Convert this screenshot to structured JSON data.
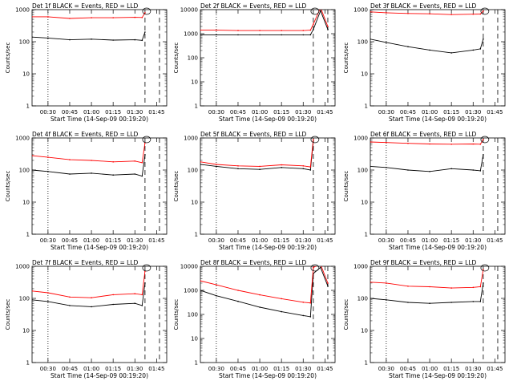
{
  "figure": {
    "colors": {
      "events": "#000000",
      "lld": "#ff0000",
      "axes": "#000000",
      "background": "#ffffff"
    },
    "ylabel": "Counts/sec",
    "xlabel": "Start Time (14-Sep-09 00:19:20)"
  },
  "chart_data": [
    {
      "type": "line",
      "title": "Det 1f BLACK = Events, RED = LLD",
      "xlabel": "Start Time (14-Sep-09 00:19:20)",
      "ylabel": "Counts/sec",
      "y_scale": "log",
      "ylim": [
        1,
        1000
      ],
      "y_ticks": [
        "1",
        "10",
        "100",
        "1000"
      ],
      "x_ticks": [
        "00:30",
        "00:45",
        "01:00",
        "01:15",
        "01:30",
        "01:45"
      ],
      "x_range_minutes": [
        "00:19",
        "01:52"
      ],
      "dotted_line_at": "00:30",
      "dashed_lines_at": [
        "01:37",
        "01:47"
      ],
      "x": [
        "00:19",
        "00:30",
        "00:45",
        "01:00",
        "01:15",
        "01:30",
        "01:35",
        "01:37"
      ],
      "series": [
        {
          "values": [
            140,
            130,
            115,
            120,
            112,
            115,
            110,
            200
          ]
        },
        {
          "values": [
            600,
            600,
            530,
            560,
            560,
            575,
            570,
            800
          ]
        }
      ]
    },
    {
      "type": "line",
      "title": "Det 2f BLACK = Events, RED = LLD",
      "xlabel": "Start Time (14-Sep-09 00:19:20)",
      "ylabel": "Counts/sec",
      "y_scale": "log",
      "ylim": [
        1,
        10000
      ],
      "y_ticks": [
        "1",
        "10",
        "100",
        "1000",
        "10000"
      ],
      "x_ticks": [
        "00:30",
        "00:45",
        "01:00",
        "01:15",
        "01:30",
        "01:45"
      ],
      "x_range_minutes": [
        "00:19",
        "01:52"
      ],
      "dotted_line_at": "00:30",
      "dashed_lines_at": [
        "01:37",
        "01:47"
      ],
      "x": [
        "00:19",
        "00:30",
        "00:45",
        "01:00",
        "01:15",
        "01:30",
        "01:35",
        "01:37",
        "01:42",
        "01:47"
      ],
      "series": [
        {
          "values": [
            900,
            900,
            900,
            900,
            900,
            900,
            900,
            1500,
            9000,
            1500
          ]
        },
        {
          "values": [
            1400,
            1400,
            1350,
            1350,
            1350,
            1350,
            1400,
            2500,
            12000,
            2000
          ]
        }
      ]
    },
    {
      "type": "line",
      "title": "Det 3f BLACK = Events, RED = LLD",
      "xlabel": "Start Time (14-Sep-09 00:19:20)",
      "ylabel": "Counts/sec",
      "y_scale": "log",
      "ylim": [
        1,
        1000
      ],
      "y_ticks": [
        "1",
        "10",
        "100",
        "1000"
      ],
      "x_ticks": [
        "00:30",
        "00:45",
        "01:00",
        "01:15",
        "01:30",
        "01:45"
      ],
      "x_range_minutes": [
        "00:19",
        "01:52"
      ],
      "dotted_line_at": "00:30",
      "dashed_lines_at": [
        "01:37",
        "01:47"
      ],
      "x": [
        "00:19",
        "00:30",
        "00:45",
        "01:00",
        "01:15",
        "01:30",
        "01:35",
        "01:37"
      ],
      "series": [
        {
          "values": [
            120,
            95,
            70,
            55,
            45,
            55,
            60,
            120
          ]
        },
        {
          "values": [
            850,
            800,
            760,
            740,
            700,
            720,
            730,
            900
          ]
        }
      ]
    },
    {
      "type": "line",
      "title": "Det 4f BLACK = Events, RED = LLD",
      "xlabel": "Start Time (14-Sep-09 00:19:20)",
      "ylabel": "Counts/sec",
      "y_scale": "log",
      "ylim": [
        1,
        1000
      ],
      "y_ticks": [
        "1",
        "10",
        "100",
        "1000"
      ],
      "x_ticks": [
        "00:30",
        "00:45",
        "01:00",
        "01:15",
        "01:30",
        "01:45"
      ],
      "x_range_minutes": [
        "00:19",
        "01:52"
      ],
      "dotted_line_at": "00:30",
      "dashed_lines_at": [
        "01:37",
        "01:47"
      ],
      "x": [
        "00:19",
        "00:30",
        "00:45",
        "01:00",
        "01:15",
        "01:30",
        "01:35",
        "01:37"
      ],
      "series": [
        {
          "values": [
            100,
            90,
            75,
            80,
            70,
            75,
            65,
            300
          ]
        },
        {
          "values": [
            280,
            250,
            210,
            200,
            180,
            190,
            170,
            700
          ]
        }
      ]
    },
    {
      "type": "line",
      "title": "Det 5f BLACK = Events, RED = LLD",
      "xlabel": "Start Time (14-Sep-09 00:19:20)",
      "ylabel": "Counts/sec",
      "y_scale": "log",
      "ylim": [
        1,
        1000
      ],
      "y_ticks": [
        "1",
        "10",
        "100",
        "1000"
      ],
      "x_ticks": [
        "00:30",
        "00:45",
        "01:00",
        "01:15",
        "01:30",
        "01:45"
      ],
      "x_range_minutes": [
        "00:19",
        "01:52"
      ],
      "dotted_line_at": "00:30",
      "dashed_lines_at": [
        "01:37",
        "01:47"
      ],
      "x": [
        "00:19",
        "00:30",
        "00:45",
        "01:00",
        "01:15",
        "01:30",
        "01:35",
        "01:37"
      ],
      "series": [
        {
          "values": [
            150,
            130,
            110,
            105,
            120,
            110,
            100,
            800
          ]
        },
        {
          "values": [
            180,
            150,
            135,
            130,
            145,
            135,
            125,
            900
          ]
        }
      ]
    },
    {
      "type": "line",
      "title": "Det 6f BLACK = Events, RED = LLD",
      "xlabel": "Start Time (14-Sep-09 00:19:20)",
      "ylabel": "Counts/sec",
      "y_scale": "log",
      "ylim": [
        1,
        1000
      ],
      "y_ticks": [
        "1",
        "10",
        "100",
        "1000"
      ],
      "x_ticks": [
        "00:30",
        "00:45",
        "01:00",
        "01:15",
        "01:30",
        "01:45"
      ],
      "x_range_minutes": [
        "00:19",
        "01:52"
      ],
      "dotted_line_at": "00:30",
      "dashed_lines_at": [
        "01:37",
        "01:47"
      ],
      "x": [
        "00:19",
        "00:30",
        "00:45",
        "01:00",
        "01:15",
        "01:30",
        "01:35",
        "01:37"
      ],
      "series": [
        {
          "values": [
            130,
            120,
            100,
            90,
            110,
            100,
            95,
            300
          ]
        },
        {
          "values": [
            750,
            720,
            680,
            650,
            640,
            650,
            640,
            900
          ]
        }
      ]
    },
    {
      "type": "line",
      "title": "Det 7f BLACK = Events, RED = LLD",
      "xlabel": "Start Time (14-Sep-09 00:19:20)",
      "ylabel": "Counts/sec",
      "y_scale": "log",
      "ylim": [
        1,
        1000
      ],
      "y_ticks": [
        "1",
        "10",
        "100",
        "1000"
      ],
      "x_ticks": [
        "00:30",
        "00:45",
        "01:00",
        "01:15",
        "01:30",
        "01:45"
      ],
      "x_range_minutes": [
        "00:19",
        "01:52"
      ],
      "dotted_line_at": "00:30",
      "dashed_lines_at": [
        "01:37",
        "01:47"
      ],
      "x": [
        "00:19",
        "00:30",
        "00:45",
        "01:00",
        "01:15",
        "01:30",
        "01:35",
        "01:37"
      ],
      "series": [
        {
          "values": [
            90,
            80,
            60,
            55,
            65,
            70,
            60,
            300
          ]
        },
        {
          "values": [
            170,
            150,
            110,
            105,
            130,
            140,
            130,
            700
          ]
        }
      ]
    },
    {
      "type": "line",
      "title": "Det 8f BLACK = Events, RED = LLD",
      "xlabel": "Start Time (14-Sep-09 00:19:20)",
      "ylabel": "Counts/sec",
      "y_scale": "log",
      "ylim": [
        1,
        10000
      ],
      "y_ticks": [
        "1",
        "10",
        "100",
        "1000",
        "10000"
      ],
      "x_ticks": [
        "00:30",
        "00:45",
        "01:00",
        "01:15",
        "01:30",
        "01:45"
      ],
      "x_range_minutes": [
        "00:19",
        "01:52"
      ],
      "dotted_line_at": "00:30",
      "dashed_lines_at": [
        "01:37",
        "01:47"
      ],
      "x": [
        "00:19",
        "00:30",
        "00:45",
        "01:00",
        "01:15",
        "01:30",
        "01:35",
        "01:37",
        "01:42",
        "01:47"
      ],
      "series": [
        {
          "values": [
            1000,
            600,
            350,
            200,
            130,
            90,
            80,
            5000,
            9000,
            1500
          ]
        },
        {
          "values": [
            2500,
            1700,
            1000,
            650,
            450,
            320,
            300,
            9000,
            12000,
            2000
          ]
        }
      ]
    },
    {
      "type": "line",
      "title": "Det 9f BLACK = Events, RED = LLD",
      "xlabel": "Start Time (14-Sep-09 00:19:20)",
      "ylabel": "Counts/sec",
      "y_scale": "log",
      "ylim": [
        1,
        1000
      ],
      "y_ticks": [
        "1",
        "10",
        "100",
        "1000"
      ],
      "x_ticks": [
        "00:30",
        "00:45",
        "01:00",
        "01:15",
        "01:30",
        "01:45"
      ],
      "x_range_minutes": [
        "00:19",
        "01:52"
      ],
      "dotted_line_at": "00:30",
      "dashed_lines_at": [
        "01:37",
        "01:47"
      ],
      "x": [
        "00:19",
        "00:30",
        "00:45",
        "01:00",
        "01:15",
        "01:30",
        "01:35",
        "01:37"
      ],
      "series": [
        {
          "values": [
            100,
            90,
            75,
            70,
            75,
            80,
            80,
            300
          ]
        },
        {
          "values": [
            320,
            300,
            240,
            230,
            210,
            220,
            230,
            800
          ]
        }
      ]
    }
  ]
}
